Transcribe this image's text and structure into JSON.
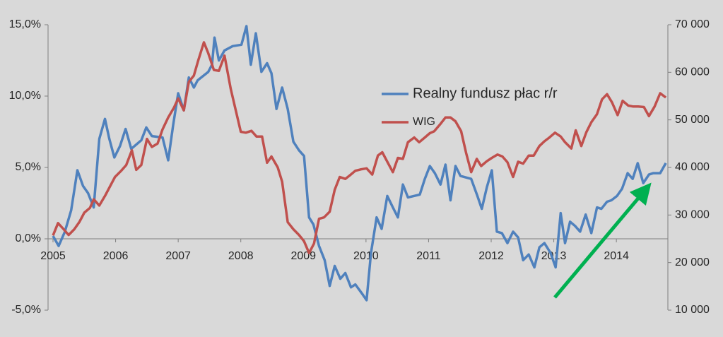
{
  "chart_data": {
    "type": "line",
    "xlim": [
      2005,
      2014.8
    ],
    "xticks": [
      2005,
      2006,
      2007,
      2008,
      2009,
      2010,
      2011,
      2012,
      2013,
      2014
    ],
    "ylim": [
      -5,
      15
    ],
    "yticks": [
      {
        "value": -5,
        "label": "-5,0%"
      },
      {
        "value": 0,
        "label": "0,0%"
      },
      {
        "value": 5,
        "label": "5,0%"
      },
      {
        "value": 10,
        "label": "10,0%"
      },
      {
        "value": 15,
        "label": "15,0%"
      }
    ],
    "y2lim": [
      10000,
      70000
    ],
    "y2ticks": [
      {
        "value": 10000,
        "label": "10 000"
      },
      {
        "value": 20000,
        "label": "20 000"
      },
      {
        "value": 30000,
        "label": "30 000"
      },
      {
        "value": 40000,
        "label": "40 000"
      },
      {
        "value": 50000,
        "label": "50 000"
      },
      {
        "value": 60000,
        "label": "60 000"
      },
      {
        "value": 70000,
        "label": "70 000"
      }
    ],
    "series": [
      {
        "name": "Realny fundusz płac r/r",
        "color": "#4f81bd",
        "axis": "y",
        "x": [
          2005,
          2005.09,
          2005.19,
          2005.29,
          2005.39,
          2005.48,
          2005.56,
          2005.65,
          2005.74,
          2005.83,
          2005.9,
          2005.98,
          2006.07,
          2006.16,
          2006.25,
          2006.41,
          2006.49,
          2006.58,
          2006.75,
          2006.84,
          2006.92,
          2007,
          2007.09,
          2007.17,
          2007.25,
          2007.31,
          2007.48,
          2007.54,
          2007.58,
          2007.65,
          2007.74,
          2007.87,
          2008.01,
          2008.09,
          2008.16,
          2008.24,
          2008.33,
          2008.42,
          2008.49,
          2008.57,
          2008.66,
          2008.75,
          2008.84,
          2008.93,
          2009.01,
          2009.09,
          2009.16,
          2009.25,
          2009.34,
          2009.42,
          2009.5,
          2009.59,
          2009.67,
          2009.76,
          2009.83,
          2009.93,
          2010.01,
          2010.08,
          2010.17,
          2010.25,
          2010.34,
          2010.43,
          2010.51,
          2010.59,
          2010.67,
          2010.86,
          2010.94,
          2011.02,
          2011.1,
          2011.19,
          2011.27,
          2011.35,
          2011.43,
          2011.51,
          2011.68,
          2011.78,
          2011.85,
          2011.93,
          2012.01,
          2012.09,
          2012.17,
          2012.26,
          2012.35,
          2012.43,
          2012.51,
          2012.6,
          2012.69,
          2012.77,
          2012.85,
          2012.95,
          2013.03,
          2013.11,
          2013.18,
          2013.26,
          2013.34,
          2013.42,
          2013.51,
          2013.6,
          2013.69,
          2013.76,
          2013.85,
          2013.92,
          2014.01,
          2014.09,
          2014.18,
          2014.26,
          2014.34,
          2014.43,
          2014.52,
          2014.59,
          2014.7,
          2014.79
        ],
        "values": [
          0.2,
          -0.5,
          0.5,
          2.0,
          4.8,
          3.7,
          3.2,
          2.2,
          7.0,
          8.4,
          7.0,
          5.7,
          6.5,
          7.7,
          6.3,
          6.9,
          7.8,
          7.2,
          7.1,
          5.5,
          8.0,
          10.2,
          9.0,
          11.3,
          10.6,
          11.1,
          11.7,
          12.2,
          14.1,
          12.5,
          13.2,
          13.5,
          13.6,
          14.9,
          12.2,
          14.4,
          11.7,
          12.3,
          11.6,
          9.1,
          10.6,
          9.1,
          6.8,
          6.2,
          5.8,
          1.5,
          1.0,
          -0.5,
          -1.5,
          -3.3,
          -1.9,
          -2.8,
          -2.4,
          -3.4,
          -3.2,
          -3.8,
          -4.3,
          -1.0,
          1.5,
          0.7,
          3.0,
          2.2,
          1.5,
          3.8,
          2.9,
          3.1,
          4.2,
          5.1,
          4.6,
          3.8,
          5.2,
          2.7,
          5.1,
          4.4,
          4.2,
          3.0,
          2.1,
          3.6,
          4.8,
          0.5,
          0.4,
          -0.3,
          0.5,
          0.1,
          -1.5,
          -1.1,
          -2.0,
          -0.6,
          -0.3,
          -1.0,
          -2.0,
          1.8,
          -0.3,
          1.2,
          0.9,
          0.5,
          1.7,
          0.4,
          2.2,
          2.1,
          2.6,
          2.7,
          3.0,
          3.5,
          4.6,
          4.2,
          5.3,
          3.9,
          4.5,
          4.6,
          4.6,
          5.3
        ]
      },
      {
        "name": "WIG",
        "color": "#c0504d",
        "axis": "y2",
        "x": [
          2005,
          2005.08,
          2005.17,
          2005.25,
          2005.34,
          2005.42,
          2005.5,
          2005.59,
          2005.65,
          2005.74,
          2005.83,
          2005.91,
          2005.99,
          2006.09,
          2006.17,
          2006.26,
          2006.33,
          2006.41,
          2006.5,
          2006.58,
          2006.67,
          2006.75,
          2006.84,
          2006.93,
          2007,
          2007.09,
          2007.17,
          2007.25,
          2007.32,
          2007.41,
          2007.48,
          2007.57,
          2007.65,
          2007.74,
          2007.84,
          2007.92,
          2008,
          2008.08,
          2008.17,
          2008.25,
          2008.34,
          2008.42,
          2008.49,
          2008.59,
          2008.66,
          2008.75,
          2008.84,
          2008.93,
          2009.01,
          2009.09,
          2009.17,
          2009.25,
          2009.33,
          2009.42,
          2009.5,
          2009.58,
          2009.67,
          2009.74,
          2009.83,
          2009.92,
          2010.01,
          2010.1,
          2010.19,
          2010.26,
          2010.34,
          2010.43,
          2010.51,
          2010.59,
          2010.67,
          2010.77,
          2010.85,
          2010.94,
          2011.02,
          2011.09,
          2011.18,
          2011.27,
          2011.35,
          2011.43,
          2011.52,
          2011.6,
          2011.68,
          2011.77,
          2011.84,
          2011.93,
          2012.01,
          2012.1,
          2012.18,
          2012.26,
          2012.35,
          2012.43,
          2012.51,
          2012.6,
          2012.68,
          2012.77,
          2012.85,
          2012.93,
          2013.02,
          2013.11,
          2013.18,
          2013.28,
          2013.35,
          2013.44,
          2013.52,
          2013.6,
          2013.69,
          2013.77,
          2013.85,
          2013.93,
          2014.02,
          2014.1,
          2014.19,
          2014.27,
          2014.35,
          2014.44,
          2014.52,
          2014.61,
          2014.7,
          2014.79
        ],
        "values": [
          25700,
          28300,
          27000,
          25800,
          27000,
          28500,
          30500,
          31500,
          33300,
          32000,
          34000,
          36000,
          38000,
          39300,
          40500,
          43600,
          39500,
          40500,
          46000,
          44300,
          45000,
          48000,
          50500,
          52500,
          54500,
          52000,
          58000,
          59300,
          62500,
          66300,
          64000,
          60500,
          60300,
          63500,
          56500,
          52000,
          47500,
          47300,
          47700,
          46500,
          46500,
          41000,
          42300,
          40000,
          37000,
          28500,
          27000,
          25800,
          24500,
          22000,
          24000,
          29200,
          29500,
          30700,
          35300,
          38000,
          37600,
          38300,
          39300,
          39600,
          39800,
          38500,
          42500,
          43200,
          41200,
          39000,
          42000,
          41800,
          45300,
          46300,
          45300,
          46300,
          47200,
          47600,
          49000,
          50500,
          50500,
          49700,
          47600,
          43000,
          39000,
          41800,
          40300,
          41300,
          42000,
          42700,
          42300,
          41100,
          38000,
          41200,
          40800,
          42500,
          42500,
          44500,
          45500,
          46300,
          47300,
          46500,
          45300,
          44000,
          47800,
          44500,
          47400,
          49500,
          51200,
          54300,
          55400,
          53700,
          51000,
          54000,
          53000,
          52800,
          52800,
          52700,
          50800,
          52800,
          55600,
          54700
        ]
      }
    ]
  }
}
